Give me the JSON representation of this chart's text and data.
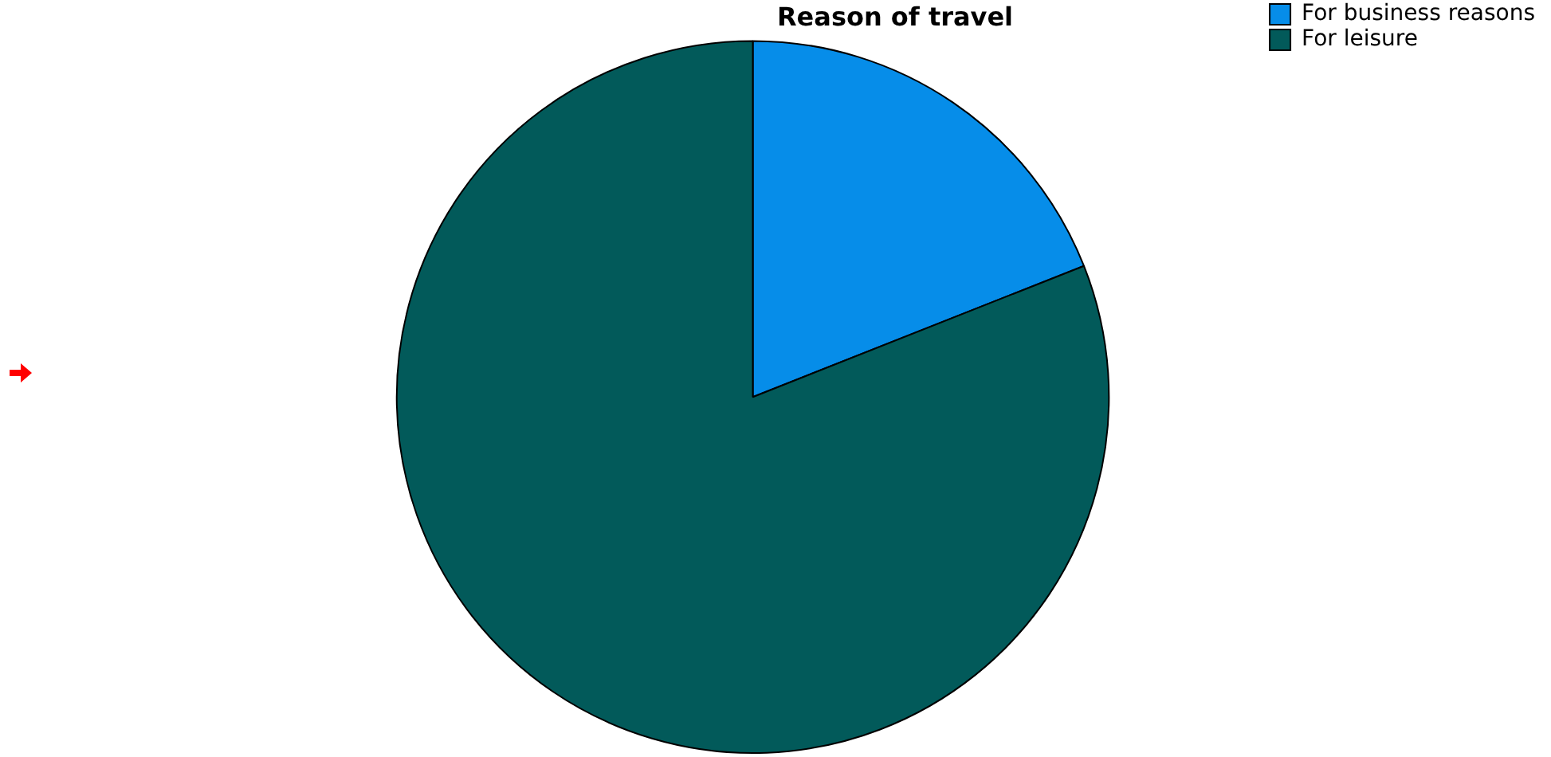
{
  "chart_data": {
    "type": "pie",
    "title": "Reason of travel",
    "categories": [
      "For business reasons",
      "For leisure"
    ],
    "values": [
      19,
      81
    ],
    "colors": [
      "#068de9",
      "#025a5a"
    ],
    "legend": "top right"
  }
}
